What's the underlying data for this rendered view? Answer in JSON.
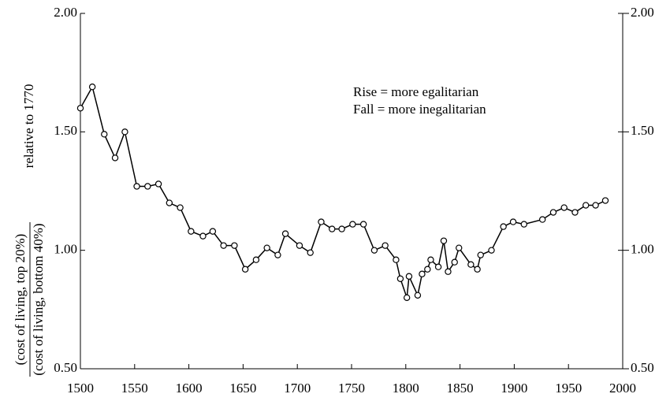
{
  "chart_data": {
    "type": "line",
    "y_label_numerator": "(cost of living, top 20%)",
    "y_label_denominator": "(cost of living, bottom 40%)",
    "y_label_note": "relative to 1770",
    "annotations": [
      "Rise = more egalitarian",
      "Fall = more inegalitarian"
    ],
    "x": [
      1500,
      1511,
      1522,
      1532,
      1541,
      1552,
      1562,
      1572,
      1582,
      1592,
      1602,
      1613,
      1622,
      1632,
      1642,
      1652,
      1662,
      1672,
      1682,
      1689,
      1702,
      1712,
      1722,
      1732,
      1741,
      1751,
      1761,
      1771,
      1781,
      1791,
      1795,
      1801,
      1803,
      1811,
      1815,
      1820,
      1823,
      1830,
      1835,
      1839,
      1845,
      1849,
      1860,
      1866,
      1869,
      1879,
      1890,
      1899,
      1909,
      1926,
      1936,
      1946,
      1956,
      1966,
      1975,
      1984
    ],
    "series": [
      {
        "color": "#000000",
        "values": [
          1.6,
          1.69,
          1.49,
          1.39,
          1.5,
          1.27,
          1.27,
          1.28,
          1.2,
          1.18,
          1.08,
          1.06,
          1.08,
          1.02,
          1.02,
          0.92,
          0.96,
          1.01,
          0.98,
          1.07,
          1.02,
          0.99,
          1.12,
          1.09,
          1.09,
          1.11,
          1.11,
          1.0,
          1.02,
          0.96,
          0.88,
          0.8,
          0.89,
          0.81,
          0.9,
          0.92,
          0.96,
          0.93,
          1.04,
          0.91,
          0.95,
          1.01,
          0.94,
          0.92,
          0.98,
          1.0,
          1.1,
          1.12,
          1.11,
          1.13,
          1.16,
          1.18,
          1.16,
          1.19,
          1.19,
          1.21
        ]
      }
    ],
    "xlim": [
      1500,
      2000
    ],
    "xticks": [
      1500,
      1550,
      1600,
      1650,
      1700,
      1750,
      1800,
      1850,
      1900,
      1950,
      2000
    ],
    "ylim": [
      0.5,
      2
    ],
    "yticks": [
      {
        "value": 0.5,
        "label": "0.50"
      },
      {
        "value": 1,
        "label": "1.00"
      },
      {
        "value": 1.5,
        "label": "1.50"
      },
      {
        "value": 2,
        "label": "2.00"
      }
    ],
    "y2lim": [
      0.5,
      2
    ],
    "y2ticks": [
      {
        "value": 0.5,
        "label": "0.50"
      },
      {
        "value": 1,
        "label": "1.00"
      },
      {
        "value": 1.5,
        "label": "1.50"
      },
      {
        "value": 2,
        "label": "2.00"
      }
    ]
  }
}
